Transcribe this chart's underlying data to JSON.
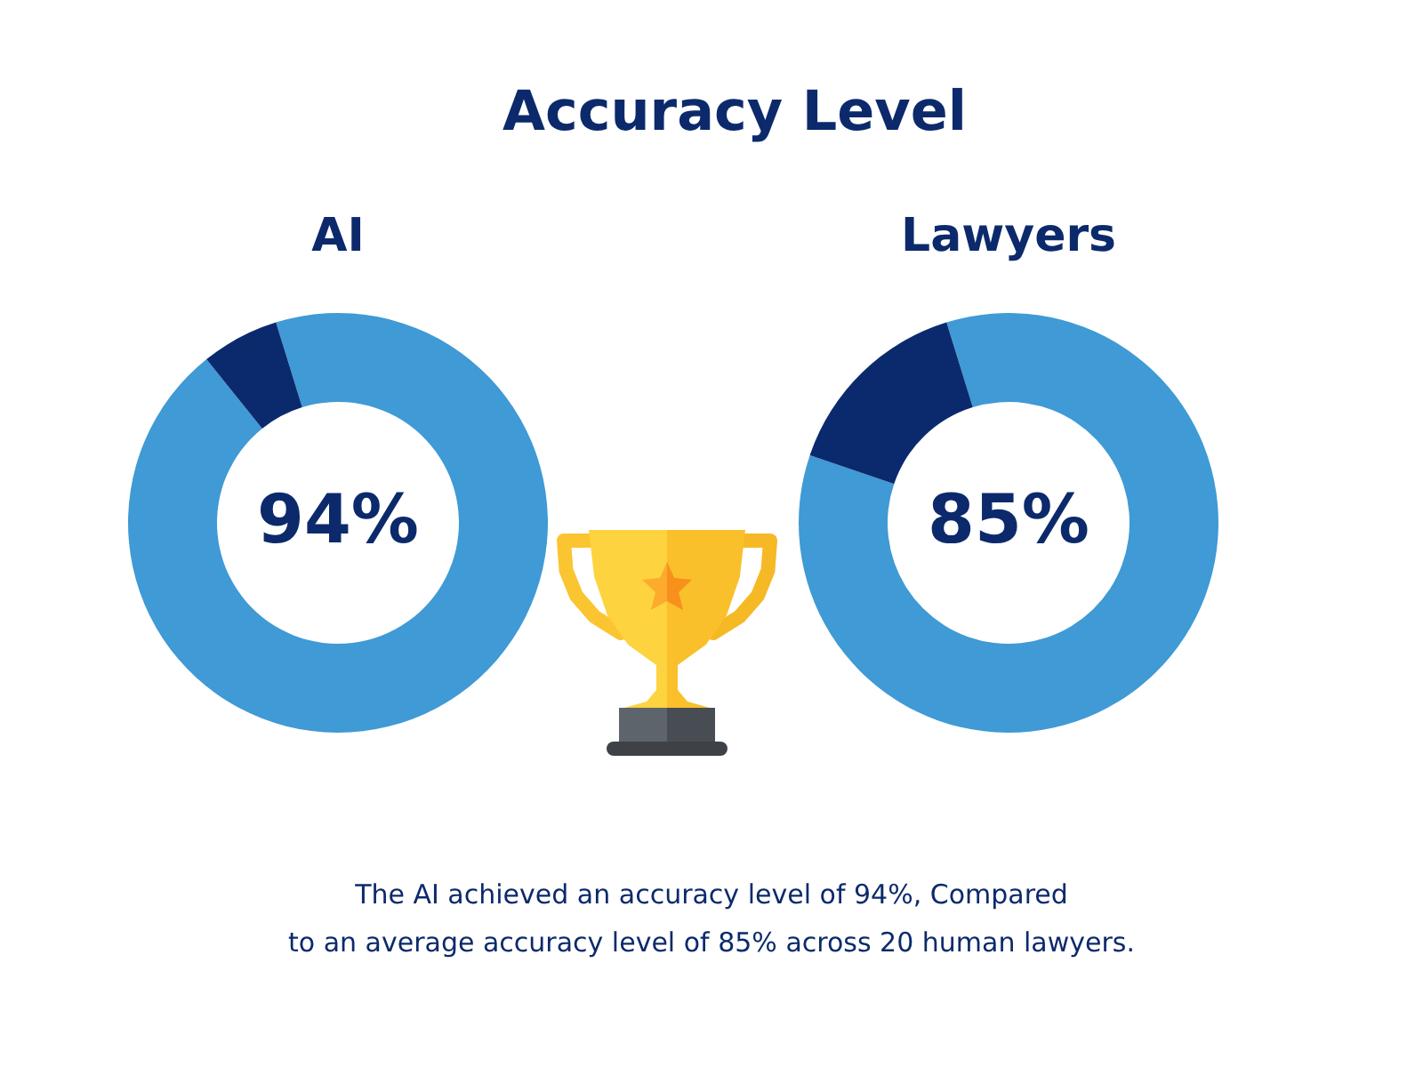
{
  "chart_data": [
    {
      "type": "other",
      "title": "Accuracy Level"
    },
    {
      "type": "donut",
      "title": "AI",
      "categories": [
        null,
        null
      ],
      "values": [
        94,
        6
      ],
      "colors": [
        "#3f9ad5",
        "#0b2a6e"
      ],
      "value_labels": [
        "94%",
        null
      ]
    },
    {
      "type": "donut",
      "title": "Lawyers",
      "categories": [
        null,
        null
      ],
      "values": [
        85,
        15
      ],
      "colors": [
        "#3f9ad5",
        "#0b2a6e"
      ],
      "value_labels": [
        "85%",
        null
      ]
    },
    {
      "type": "other",
      "annotations": [
        "The AI achieved an accuracy level of 94%, Compared\nto an average accuracy level of 85% across 20 human lawyers."
      ]
    }
  ]
}
